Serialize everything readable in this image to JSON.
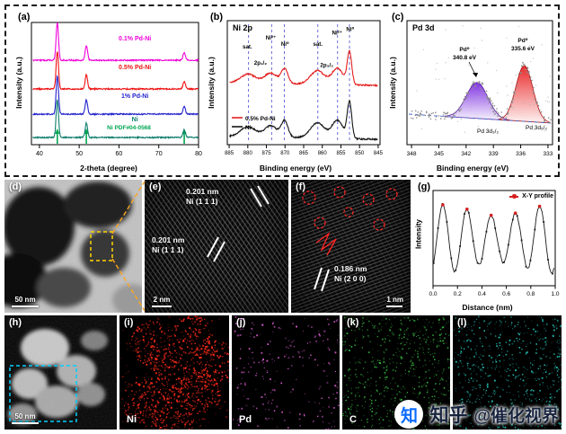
{
  "chart_data": [
    {
      "panel": "(a)",
      "type": "line",
      "name": "XRD patterns",
      "xlabel": "2-theta (degree)",
      "ylabel": "Intensity (a.u.)",
      "xlim": [
        38,
        80
      ],
      "xticks": [
        40,
        50,
        60,
        70,
        80
      ],
      "series": [
        {
          "name": "0.1% Pd-Ni",
          "color": "#f000d8"
        },
        {
          "name": "0.5% Pd-Ni",
          "color": "#ee1111"
        },
        {
          "name": "1% Pd-Ni",
          "color": "#2222cc"
        },
        {
          "name": "Ni",
          "color": "#0e7d6e"
        }
      ],
      "peaks": [
        {
          "two_theta": 44.5,
          "rel_intensity": 1.0
        },
        {
          "two_theta": 51.8,
          "rel_intensity": 0.38
        },
        {
          "two_theta": 76.4,
          "rel_intensity": 0.2
        }
      ],
      "reference": {
        "label": "Ni PDF#04-0568",
        "color": "#00a651",
        "positions": [
          44.5,
          51.8,
          76.4
        ]
      }
    },
    {
      "panel": "(b)",
      "type": "line",
      "title": "Ni 2p",
      "xlabel": "Binding energy (eV)",
      "ylabel": "Intensity (a.u.)",
      "xlim": [
        885.5,
        844.5
      ],
      "xticks": [
        885,
        880,
        875,
        870,
        865,
        860,
        855,
        850,
        845
      ],
      "guides": [
        879.8,
        873.6,
        870.2,
        861.2,
        855.9,
        852.7
      ],
      "peak_labels": [
        {
          "text": "sat.",
          "x": 880.1,
          "y": 0.18
        },
        {
          "text": "Ni²⁺",
          "x": 873.8,
          "y": 0.11
        },
        {
          "text": "Ni⁰",
          "x": 870.0,
          "y": 0.16
        },
        {
          "text": "2p₁/₂",
          "x": 876.6,
          "y": 0.31
        },
        {
          "text": "sat.",
          "x": 861.2,
          "y": 0.16
        },
        {
          "text": "Ni²⁺",
          "x": 856.0,
          "y": 0.07
        },
        {
          "text": "2p₃/₂",
          "x": 858.8,
          "y": 0.33
        },
        {
          "text": "Ni⁰",
          "x": 852.5,
          "y": 0.04
        }
      ],
      "components_ev": [
        {
          "c": 852.7,
          "w": 0.6,
          "h": 1.0
        },
        {
          "c": 855.9,
          "w": 1.5,
          "h": 0.5
        },
        {
          "c": 861.3,
          "w": 1.9,
          "h": 0.42
        },
        {
          "c": 870.1,
          "w": 0.9,
          "h": 0.45
        },
        {
          "c": 873.8,
          "w": 1.7,
          "h": 0.32
        },
        {
          "c": 879.9,
          "w": 2.0,
          "h": 0.28
        }
      ],
      "series": [
        {
          "name": "0.5% Pd-Ni",
          "color": "#e42020"
        },
        {
          "name": "Ni",
          "color": "#151515"
        }
      ]
    },
    {
      "panel": "(c)",
      "type": "scatter+area",
      "title": "Pd 3d",
      "xlabel": "Binding energy (eV)",
      "ylabel": "Intensity (a.u.)",
      "xlim": [
        348.5,
        332.5
      ],
      "xticks": [
        348,
        345,
        342,
        339,
        336,
        333
      ],
      "components": [
        {
          "name": "Pd 3d₃/₂",
          "annotation_line1": "Pd⁰",
          "annotation_line2": "340.8 eV",
          "center_ev": 340.8,
          "color": "#7a2be0"
        },
        {
          "name": "Pd 3d₅/₂",
          "annotation_line1": "Pd⁰",
          "annotation_line2": "335.6 eV",
          "center_ev": 335.6,
          "color": "#e82020"
        }
      ]
    },
    {
      "panel": "(g)",
      "type": "line",
      "legend": "X-Y profile",
      "xlabel": "Distance (nm)",
      "ylabel": "Intensity",
      "xlim": [
        0,
        1
      ],
      "xticks": [
        "0.0",
        "0.2",
        "0.4",
        "0.6",
        "0.8",
        "1.0"
      ],
      "fringe_period_nm": 0.198,
      "peaks_x_nm": [
        0.08,
        0.278,
        0.476,
        0.674,
        0.872
      ],
      "line_color": "#1a1a1a",
      "marker_color": "#d42020"
    }
  ],
  "micro": {
    "d": {
      "label": "(d)",
      "scalebar": "50 nm"
    },
    "e": {
      "label": "(e)",
      "scalebar": "2 nm",
      "annotations": [
        {
          "line1": "0.201 nm",
          "line2": "Ni (1 1 1)"
        },
        {
          "line1": "0.201 nm",
          "line2": "Ni (1 1 1)"
        }
      ]
    },
    "f": {
      "label": "(f)",
      "scalebar": "1 nm",
      "annotation": {
        "line1": "0.186 nm",
        "line2": "Ni (2 0 0)"
      }
    },
    "h": {
      "label": "(h)",
      "scalebar": "50 nm"
    }
  },
  "maps": [
    {
      "label": "(i)",
      "element": "Ni",
      "color": "#ff2a1a",
      "style": "clustered",
      "density": 1300
    },
    {
      "label": "(j)",
      "element": "Pd",
      "color": "#e060d8",
      "style": "sparse",
      "density": 230
    },
    {
      "label": "(k)",
      "element": "C",
      "color": "#3cc94a",
      "style": "uniform",
      "density": 680
    },
    {
      "label": "(l)",
      "element": "",
      "color": "#28d2c6",
      "style": "uniform",
      "density": 680
    }
  ],
  "watermark": {
    "logo_char": "知",
    "brand": "知乎",
    "handle": "@催化视界",
    "logo_color": "#0b6cff"
  }
}
